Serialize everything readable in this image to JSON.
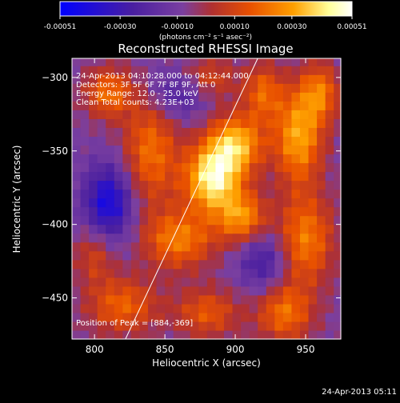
{
  "colorbar": {
    "tick_labels": [
      "-0.00051",
      "-0.00030",
      "-0.00010",
      "0.00010",
      "0.00030",
      "0.00051"
    ],
    "units_label": "(photons cm⁻² s⁻¹ asec⁻²)",
    "range": [
      -0.00051,
      0.00051
    ],
    "colors": [
      "#0000ff",
      "#4a1fa0",
      "#7a3fa0",
      "#b03030",
      "#e85000",
      "#ffa000",
      "#ffff99",
      "#ffffff"
    ]
  },
  "annotations": {
    "time_range": "24-Apr-2013 04:10:28.000 to 04:12:44.000",
    "detectors": "Detectors: 3F 5F 6F 7F 8F 9F, Att 0",
    "energy": "Energy Range: 12.0 - 25.0 keV",
    "clean": "Clean     Total counts: 4.23E+03",
    "peak": "Position of Peak = [884,-369]"
  },
  "footer_timestamp": "24-Apr-2013 05:11",
  "chart_data": {
    "type": "heatmap",
    "title": "Reconstructed RHESSI Image",
    "xlabel": "Heliocentric X (arcsec)",
    "ylabel": "Heliocentric Y (arcsec)",
    "xlim": [
      784,
      975
    ],
    "ylim": [
      -478,
      -287
    ],
    "xticks": [
      800,
      850,
      900,
      950
    ],
    "yticks": [
      -300,
      -350,
      -400,
      -450
    ],
    "peak": {
      "x": 884,
      "y": -369
    },
    "limb_line": [
      {
        "x": 822,
        "y": -478
      },
      {
        "x": 916,
        "y": -287
      }
    ],
    "sources": [
      {
        "x": 884,
        "y": -369,
        "sx": 14,
        "sy": 16,
        "amp": 1.0
      },
      {
        "x": 900,
        "y": -345,
        "sx": 14,
        "sy": 14,
        "amp": 0.8
      },
      {
        "x": 905,
        "y": -395,
        "sx": 12,
        "sy": 12,
        "amp": 0.65
      },
      {
        "x": 860,
        "y": -410,
        "sx": 18,
        "sy": 14,
        "amp": 0.6
      },
      {
        "x": 840,
        "y": -350,
        "sx": 14,
        "sy": 26,
        "amp": 0.55
      },
      {
        "x": 810,
        "y": -310,
        "sx": 12,
        "sy": 12,
        "amp": 0.55
      },
      {
        "x": 945,
        "y": -340,
        "sx": 12,
        "sy": 22,
        "amp": 0.75
      },
      {
        "x": 960,
        "y": -310,
        "sx": 10,
        "sy": 14,
        "amp": 0.55
      },
      {
        "x": 950,
        "y": -410,
        "sx": 14,
        "sy": 22,
        "amp": 0.6
      },
      {
        "x": 935,
        "y": -460,
        "sx": 14,
        "sy": 14,
        "amp": 0.55
      },
      {
        "x": 880,
        "y": -460,
        "sx": 16,
        "sy": 12,
        "amp": 0.45
      },
      {
        "x": 820,
        "y": -455,
        "sx": 18,
        "sy": 14,
        "amp": 0.5
      },
      {
        "x": 800,
        "y": -420,
        "sx": 10,
        "sy": 14,
        "amp": 0.35
      },
      {
        "x": 880,
        "y": -300,
        "sx": 14,
        "sy": 10,
        "amp": 0.4
      },
      {
        "x": 920,
        "y": -310,
        "sx": 10,
        "sy": 14,
        "amp": 0.5
      }
    ],
    "negatives": [
      {
        "x": 810,
        "y": -385,
        "sx": 12,
        "sy": 18,
        "amp": -0.7
      },
      {
        "x": 860,
        "y": -310,
        "sx": 14,
        "sy": 12,
        "amp": -0.4
      },
      {
        "x": 920,
        "y": -425,
        "sx": 12,
        "sy": 14,
        "amp": -0.4
      }
    ]
  }
}
